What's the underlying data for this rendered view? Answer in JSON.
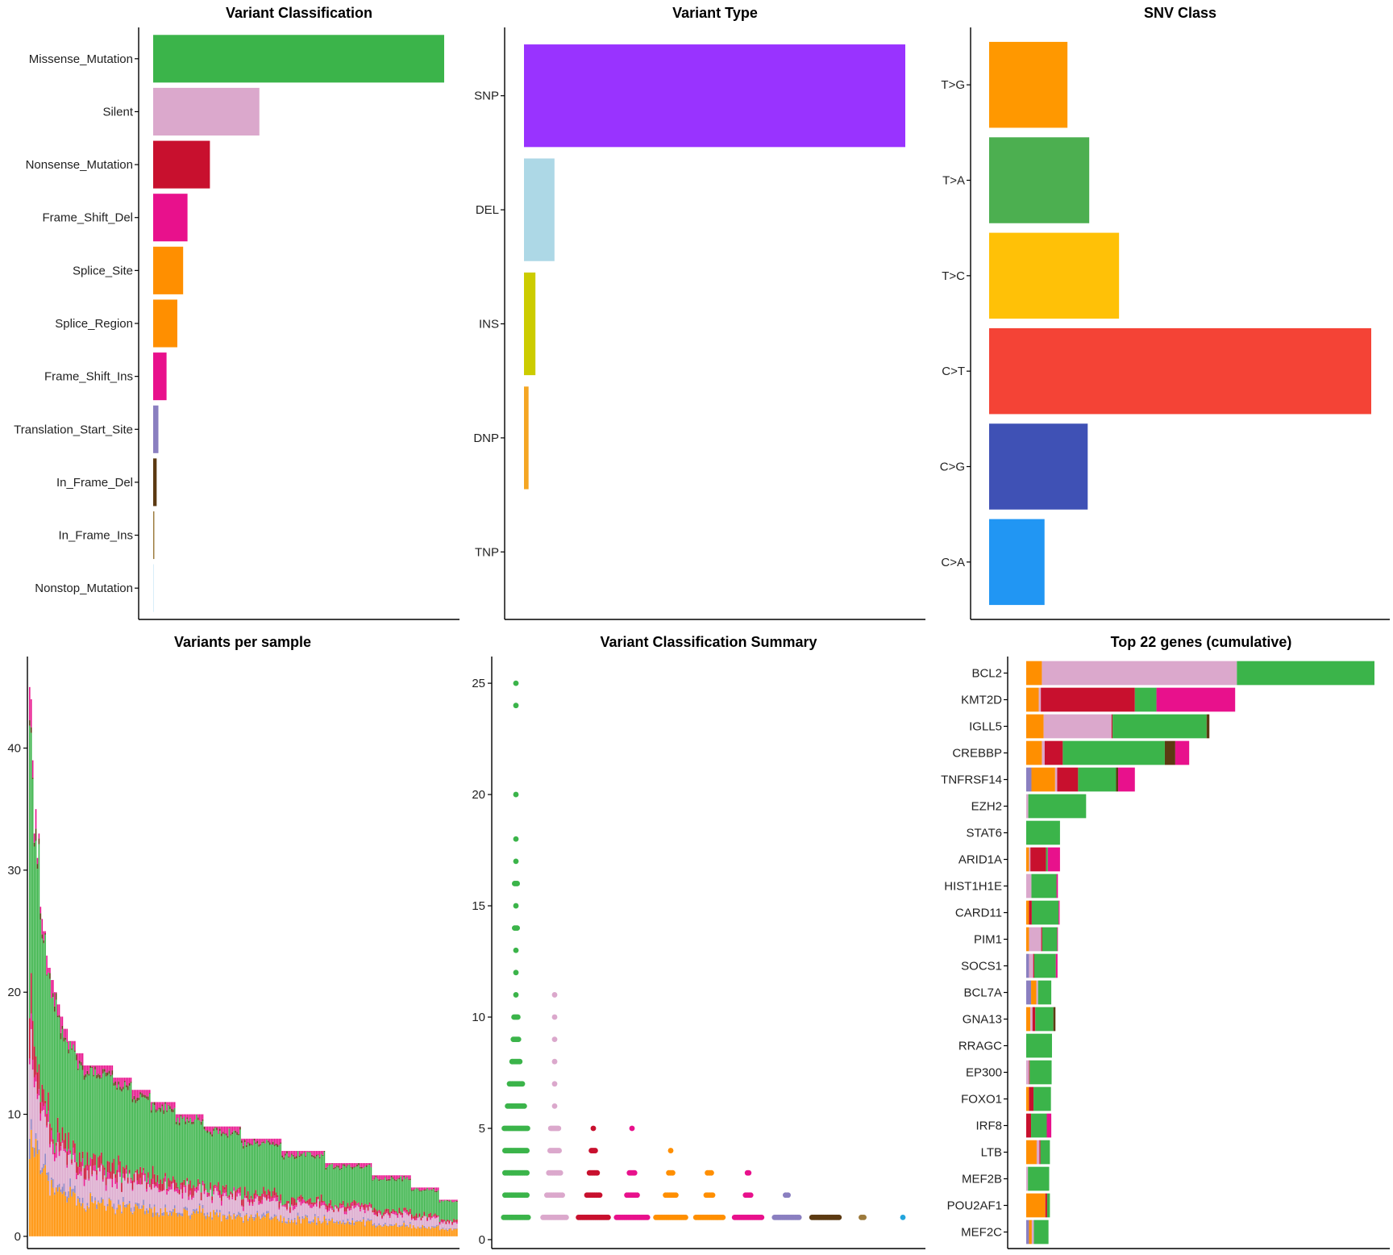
{
  "colors": {
    "Missense_Mutation": "#3bb44a",
    "Silent": "#dba8cc",
    "Nonsense_Mutation": "#c8102e",
    "Frame_Shift_Del": "#e8118c",
    "Splice_Site": "#ff8f00",
    "Splice_Region": "#ff8f00",
    "Frame_Shift_Ins": "#e8118c",
    "Translation_Start_Site": "#8a7fc0",
    "In_Frame_Del": "#5c3a12",
    "In_Frame_Ins": "#9c7a3c",
    "Nonstop_Mutation": "#22a4dc"
  },
  "chart_data": [
    {
      "id": "variant_classification",
      "type": "bar",
      "orientation": "horizontal",
      "title": "Variant Classification",
      "categories": [
        "Missense_Mutation",
        "Silent",
        "Nonsense_Mutation",
        "Frame_Shift_Del",
        "Splice_Site",
        "Splice_Region",
        "Frame_Shift_Ins",
        "Translation_Start_Site",
        "In_Frame_Del",
        "In_Frame_Ins",
        "Nonstop_Mutation"
      ],
      "values": [
        100,
        36.5,
        19.5,
        11.8,
        10.3,
        8.3,
        4.6,
        1.8,
        1.2,
        0.4,
        0.05
      ],
      "xlim": [
        0,
        110
      ],
      "grid": false
    },
    {
      "id": "variant_type",
      "type": "bar",
      "orientation": "horizontal",
      "title": "Variant Type",
      "categories": [
        "SNP",
        "DEL",
        "INS",
        "DNP",
        "TNP"
      ],
      "values": [
        100,
        8,
        3,
        1.2,
        0
      ],
      "colors": [
        "#9933ff",
        "#add8e6",
        "#cccc00",
        "#f5a623",
        "#888888"
      ],
      "xlim": [
        0,
        110
      ],
      "grid": false
    },
    {
      "id": "snv_class",
      "type": "bar",
      "orientation": "horizontal",
      "title": "SNV Class",
      "categories": [
        "T>G",
        "T>A",
        "T>C",
        "C>T",
        "C>G",
        "C>A"
      ],
      "values": [
        20.5,
        26.2,
        34,
        100,
        25.8,
        14.5
      ],
      "colors": [
        "#ff9800",
        "#4caf50",
        "#ffc107",
        "#f44336",
        "#3f51b5",
        "#2196f3"
      ],
      "xlim": [
        0,
        105
      ],
      "grid": false
    },
    {
      "id": "variants_per_sample",
      "type": "bar",
      "stacked": true,
      "title": "Variants per sample",
      "y_ticks": [
        0,
        10,
        20,
        30,
        40
      ],
      "ylim": [
        -1,
        47.5
      ],
      "totals": [
        45,
        44,
        39,
        33,
        35,
        31,
        33,
        27,
        26,
        25,
        25,
        23,
        22,
        22,
        21,
        21,
        20,
        20,
        19,
        19,
        18,
        18,
        17,
        17,
        17,
        16,
        16,
        16,
        16,
        16,
        15,
        15,
        15,
        15,
        15,
        14,
        14,
        14,
        14,
        14,
        14,
        14,
        14,
        14,
        14,
        14,
        14,
        14,
        14,
        14,
        14,
        14,
        14,
        14,
        13,
        13,
        13,
        13,
        13,
        13,
        13,
        13,
        13,
        13,
        13,
        13,
        12,
        12,
        12,
        12,
        12,
        12,
        12,
        12,
        12,
        12,
        12,
        12,
        11,
        11,
        11,
        11,
        11,
        11,
        11,
        11,
        11,
        11,
        11,
        11,
        11,
        11,
        11,
        11,
        10,
        10,
        10,
        10,
        10,
        10,
        10,
        10,
        10,
        10,
        10,
        10,
        10,
        10,
        10,
        10,
        10,
        10,
        9,
        9,
        9,
        9,
        9,
        9,
        9,
        9,
        9,
        9,
        9,
        9,
        9,
        9,
        9,
        9,
        9,
        9,
        9,
        9,
        9,
        9,
        9,
        9,
        8,
        8,
        8,
        8,
        8,
        8,
        8,
        8,
        8,
        8,
        8,
        8,
        8,
        8,
        8,
        8,
        8,
        8,
        8,
        8,
        8,
        8,
        8,
        8,
        8,
        8,
        7,
        7,
        7,
        7,
        7,
        7,
        7,
        7,
        7,
        7,
        7,
        7,
        7,
        7,
        7,
        7,
        7,
        7,
        7,
        7,
        7,
        7,
        7,
        7,
        7,
        7,
        7,
        7,
        6,
        6,
        6,
        6,
        6,
        6,
        6,
        6,
        6,
        6,
        6,
        6,
        6,
        6,
        6,
        6,
        6,
        6,
        6,
        6,
        6,
        6,
        6,
        6,
        6,
        6,
        6,
        6,
        6,
        6,
        5,
        5,
        5,
        5,
        5,
        5,
        5,
        5,
        5,
        5,
        5,
        5,
        5,
        5,
        5,
        5,
        5,
        5,
        5,
        5,
        5,
        5,
        5,
        5,
        5,
        4,
        4,
        4,
        4,
        4,
        4,
        4,
        4,
        4,
        4,
        4,
        4,
        4,
        4,
        4,
        4,
        4,
        4,
        3,
        3,
        3,
        3,
        3,
        3,
        3,
        3,
        3,
        3,
        3,
        3
      ]
    },
    {
      "id": "variant_classification_summary",
      "type": "scatter",
      "title": "Variant Classification Summary",
      "y_ticks": [
        0,
        5,
        10,
        15,
        20,
        25
      ],
      "ylim": [
        -0.4,
        26.2
      ],
      "groups": [
        {
          "category": "Missense_Mutation",
          "values": [
            1,
            1,
            1,
            1,
            1,
            1,
            1,
            1,
            1,
            1,
            1,
            1,
            1,
            1,
            1,
            1,
            1,
            1,
            1,
            1,
            2,
            2,
            2,
            2,
            2,
            2,
            2,
            2,
            2,
            2,
            2,
            2,
            2,
            2,
            2,
            2,
            2,
            2,
            3,
            3,
            3,
            3,
            3,
            3,
            3,
            3,
            3,
            3,
            3,
            3,
            3,
            3,
            3,
            3,
            3,
            3,
            4,
            4,
            4,
            4,
            4,
            4,
            4,
            4,
            4,
            4,
            4,
            4,
            4,
            4,
            4,
            4,
            4,
            4,
            5,
            5,
            5,
            5,
            5,
            5,
            5,
            5,
            5,
            5,
            5,
            5,
            5,
            5,
            5,
            5,
            5,
            5,
            5,
            6,
            6,
            6,
            6,
            6,
            6,
            6,
            6,
            6,
            6,
            6,
            6,
            6,
            6,
            7,
            7,
            7,
            7,
            7,
            7,
            7,
            7,
            7,
            7,
            7,
            8,
            8,
            8,
            8,
            8,
            8,
            8,
            9,
            9,
            9,
            9,
            9,
            10,
            10,
            10,
            10,
            11,
            12,
            13,
            14,
            14,
            14,
            15,
            16,
            16,
            16,
            17,
            18,
            20,
            24,
            25
          ]
        },
        {
          "category": "Silent",
          "values": [
            1,
            1,
            1,
            1,
            1,
            1,
            1,
            1,
            1,
            1,
            1,
            1,
            1,
            1,
            1,
            1,
            1,
            1,
            1,
            2,
            2,
            2,
            2,
            2,
            2,
            2,
            2,
            2,
            2,
            2,
            2,
            2,
            3,
            3,
            3,
            3,
            3,
            3,
            3,
            3,
            3,
            3,
            4,
            4,
            4,
            4,
            4,
            4,
            4,
            4,
            5,
            5,
            5,
            5,
            5,
            5,
            5,
            6,
            7,
            8,
            9,
            10,
            11
          ]
        },
        {
          "category": "Nonsense_Mutation",
          "values": [
            1,
            1,
            1,
            1,
            1,
            1,
            1,
            1,
            1,
            1,
            1,
            1,
            1,
            1,
            1,
            1,
            1,
            1,
            1,
            1,
            1,
            1,
            1,
            1,
            2,
            2,
            2,
            2,
            2,
            2,
            2,
            2,
            2,
            2,
            2,
            3,
            3,
            3,
            3,
            3,
            3,
            3,
            4,
            4,
            4,
            4,
            5
          ]
        },
        {
          "category": "Frame_Shift_Del",
          "values": [
            1,
            1,
            1,
            1,
            1,
            1,
            1,
            1,
            1,
            1,
            1,
            1,
            1,
            1,
            1,
            1,
            1,
            1,
            1,
            1,
            1,
            1,
            1,
            1,
            1,
            2,
            2,
            2,
            2,
            2,
            2,
            2,
            2,
            2,
            3,
            3,
            3,
            3,
            3,
            5
          ]
        },
        {
          "category": "Splice_Site",
          "values": [
            1,
            1,
            1,
            1,
            1,
            1,
            1,
            1,
            1,
            1,
            1,
            1,
            1,
            1,
            1,
            1,
            1,
            1,
            1,
            1,
            1,
            1,
            1,
            1,
            2,
            2,
            2,
            2,
            2,
            2,
            2,
            2,
            2,
            3,
            3,
            3,
            3,
            4
          ]
        },
        {
          "category": "Splice_Region",
          "values": [
            1,
            1,
            1,
            1,
            1,
            1,
            1,
            1,
            1,
            1,
            1,
            1,
            1,
            1,
            1,
            1,
            1,
            1,
            1,
            1,
            1,
            1,
            2,
            2,
            2,
            2,
            2,
            2,
            3,
            3,
            3,
            3
          ]
        },
        {
          "category": "Frame_Shift_Ins",
          "values": [
            1,
            1,
            1,
            1,
            1,
            1,
            1,
            1,
            1,
            1,
            1,
            1,
            1,
            1,
            1,
            1,
            1,
            1,
            1,
            1,
            1,
            1,
            2,
            2,
            2,
            2,
            2,
            3,
            3
          ]
        },
        {
          "category": "Translation_Start_Site",
          "values": [
            1,
            1,
            1,
            1,
            1,
            1,
            1,
            1,
            1,
            1,
            1,
            1,
            1,
            1,
            1,
            1,
            1,
            1,
            1,
            1,
            2,
            2,
            2
          ]
        },
        {
          "category": "In_Frame_Del",
          "values": [
            1,
            1,
            1,
            1,
            1,
            1,
            1,
            1,
            1,
            1,
            1,
            1,
            1,
            1,
            1,
            1,
            1,
            1,
            1,
            1,
            1,
            1
          ]
        },
        {
          "category": "In_Frame_Ins",
          "values": [
            1,
            1,
            1
          ]
        },
        {
          "category": "Nonstop_Mutation",
          "values": [
            1
          ]
        }
      ]
    },
    {
      "id": "top_genes",
      "type": "bar",
      "orientation": "horizontal",
      "stacked": true,
      "title": "Top 22 genes (cumulative)",
      "xlim": [
        0,
        105
      ],
      "categories": [
        "BCL2",
        "KMT2D",
        "IGLL5",
        "CREBBP",
        "TNFRSF14",
        "EZH2",
        "STAT6",
        "ARID1A",
        "HIST1H1E",
        "CARD11",
        "PIM1",
        "SOCS1",
        "BCL7A",
        "GNA13",
        "RRAGC",
        "EP300",
        "FOXO1",
        "IRF8",
        "LTB",
        "MEF2B",
        "POU2AF1",
        "MEF2C"
      ],
      "series": [
        {
          "name": "Translation_Start_Site",
          "values": [
            0,
            0,
            0,
            0,
            1.5,
            0,
            0,
            0,
            0,
            0,
            0,
            0.8,
            1.4,
            0,
            0,
            0,
            0,
            0,
            0,
            0,
            0,
            0.8
          ]
        },
        {
          "name": "Splice_Site",
          "values": [
            4.5,
            3.6,
            5.0,
            4.5,
            6.8,
            0,
            0,
            0.8,
            0,
            0.8,
            0.8,
            0,
            1.5,
            1.2,
            0,
            0,
            0.8,
            0,
            3.0,
            0,
            5.5,
            0.8
          ]
        },
        {
          "name": "Silent",
          "values": [
            56,
            0.6,
            19.5,
            0.8,
            0.6,
            0.6,
            0,
            0.4,
            1.5,
            0,
            3.5,
            1.2,
            0.5,
            0.6,
            0,
            0.8,
            0,
            0,
            0.8,
            0.5,
            0,
            0.6
          ]
        },
        {
          "name": "Nonsense_Mutation",
          "values": [
            0,
            27,
            0.3,
            5.2,
            6.0,
            0,
            0,
            4.5,
            0,
            0.8,
            0.3,
            0.3,
            0,
            0.8,
            0,
            0.2,
            1.3,
            1.4,
            0.3,
            0,
            0.5,
            0
          ]
        },
        {
          "name": "Missense_Mutation",
          "values": [
            39.5,
            6.2,
            27.0,
            29.3,
            10.9,
            16.6,
            9.7,
            0.5,
            7.2,
            7.7,
            4.3,
            6.2,
            3.8,
            5.2,
            7.4,
            6.3,
            5.0,
            4.5,
            2.7,
            6.1,
            0.8,
            4.2
          ]
        },
        {
          "name": "In_Frame_Del",
          "values": [
            0,
            0,
            0.8,
            3.0,
            0.6,
            0,
            0,
            0,
            0,
            0,
            0,
            0,
            0,
            0.6,
            0,
            0,
            0,
            0,
            0,
            0,
            0,
            0
          ]
        },
        {
          "name": "Frame_Shift_Del",
          "values": [
            0,
            22.6,
            0,
            4.0,
            4.8,
            0,
            0,
            3.5,
            0.4,
            0.3,
            0.2,
            0.5,
            0,
            0,
            0,
            0,
            0,
            1.3,
            0,
            0,
            0,
            0
          ]
        }
      ]
    }
  ]
}
